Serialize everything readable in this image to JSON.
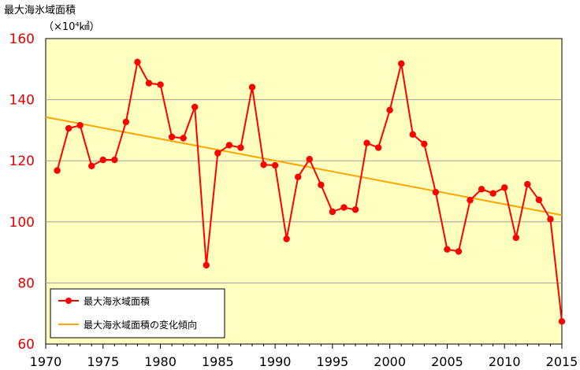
{
  "chart_data": {
    "type": "line",
    "ylabel": "最大海氷域面積",
    "yunit": "（×10⁴㎢）",
    "ylim": [
      60,
      160
    ],
    "yticks": [
      60,
      80,
      100,
      120,
      140,
      160
    ],
    "xlim": [
      1970,
      2015
    ],
    "xticks": [
      1970,
      1975,
      1980,
      1985,
      1990,
      1995,
      2000,
      2005,
      2010,
      2015
    ],
    "grid": true,
    "legend_position": "bottom-left",
    "series": [
      {
        "name": "最大海氷域面積",
        "color": "#ff0000",
        "marker": "circle",
        "x": [
          1971,
          1972,
          1973,
          1974,
          1975,
          1976,
          1977,
          1978,
          1979,
          1980,
          1981,
          1982,
          1983,
          1984,
          1985,
          1986,
          1987,
          1988,
          1989,
          1990,
          1991,
          1992,
          1993,
          1994,
          1995,
          1996,
          1997,
          1998,
          1999,
          2000,
          2001,
          2002,
          2003,
          2004,
          2005,
          2006,
          2007,
          2008,
          2009,
          2010,
          2011,
          2012,
          2013,
          2014,
          2015
        ],
        "values": [
          116.8,
          130.6,
          131.6,
          118.3,
          120.3,
          120.3,
          132.7,
          152.3,
          145.4,
          144.9,
          127.8,
          127.4,
          137.6,
          85.8,
          122.5,
          125.1,
          124.3,
          144.1,
          118.7,
          118.5,
          94.4,
          114.7,
          120.5,
          112.1,
          103.3,
          104.7,
          104.0,
          125.8,
          124.3,
          136.6,
          151.8,
          128.6,
          125.5,
          109.7,
          91.0,
          90.3,
          107.1,
          110.7,
          109.3,
          111.2,
          94.8,
          112.3,
          107.2,
          100.9,
          67.4
        ]
      },
      {
        "name": "最大海氷域面積の変化傾向",
        "color": "#ffa500",
        "marker": "none",
        "x": [
          1970,
          2015
        ],
        "values": [
          134.3,
          102.2
        ]
      }
    ]
  },
  "colors": {
    "plot_background": "#ffffc0",
    "axis_tick_labels_y": "#e60000"
  }
}
